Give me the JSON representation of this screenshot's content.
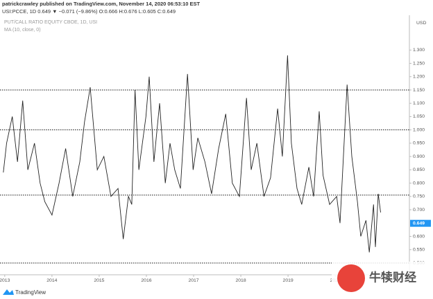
{
  "header": {
    "publisher": "patrickcrawley published on TradingView.com, November 14, 2020 06:53:10 EST",
    "quote": "USI:PCCE, 1D  0.649 ▼ −0.071 (−9.86%)  O:0.666 H:0.676 L:0.605 C:0.649"
  },
  "chart_data": {
    "type": "line",
    "title": "PUT/CALL RATIO EQUITY CBOE, 1D, USI",
    "subtitle": "MA (10, close, 0)",
    "currency": "USD",
    "x": [
      2012.97,
      2013.04,
      2013.16,
      2013.27,
      2013.38,
      2013.49,
      2013.63,
      2013.75,
      2013.85,
      2014.0,
      2014.15,
      2014.29,
      2014.44,
      2014.59,
      2014.69,
      2014.81,
      2014.96,
      2015.1,
      2015.25,
      2015.4,
      2015.51,
      2015.62,
      2015.69,
      2015.76,
      2015.84,
      2015.99,
      2016.06,
      2016.16,
      2016.28,
      2016.4,
      2016.5,
      2016.6,
      2016.72,
      2016.87,
      2016.99,
      2017.09,
      2017.24,
      2017.38,
      2017.53,
      2017.68,
      2017.82,
      2017.97,
      2018.12,
      2018.22,
      2018.34,
      2018.49,
      2018.63,
      2018.78,
      2018.88,
      2018.99,
      2019.07,
      2019.19,
      2019.29,
      2019.44,
      2019.54,
      2019.66,
      2019.74,
      2019.88,
      2020.03,
      2020.1,
      2020.25,
      2020.35,
      2020.47,
      2020.54,
      2020.65,
      2020.72,
      2020.81,
      2020.85,
      2020.91,
      2020.96
    ],
    "series": [
      {
        "name": "USI:PCCE",
        "color": "#222222",
        "values": [
          0.84,
          0.95,
          1.05,
          0.88,
          1.11,
          0.85,
          0.95,
          0.8,
          0.73,
          0.68,
          0.8,
          0.93,
          0.75,
          0.88,
          1.03,
          1.16,
          0.85,
          0.9,
          0.75,
          0.78,
          0.59,
          0.75,
          0.72,
          1.15,
          0.85,
          1.05,
          1.2,
          0.88,
          1.1,
          0.8,
          0.95,
          0.85,
          0.78,
          1.21,
          0.85,
          0.97,
          0.88,
          0.76,
          0.93,
          1.06,
          0.8,
          0.75,
          1.12,
          0.85,
          0.95,
          0.75,
          0.82,
          1.08,
          0.9,
          1.28,
          0.95,
          0.78,
          0.72,
          0.86,
          0.75,
          1.07,
          0.83,
          0.72,
          0.75,
          0.65,
          1.17,
          0.9,
          0.73,
          0.6,
          0.66,
          0.54,
          0.72,
          0.56,
          0.76,
          0.69
        ]
      }
    ],
    "last_price": 0.649,
    "levels": [
      1.15,
      1.0,
      0.755,
      0.5
    ],
    "xlim": [
      2012.9,
      2021.57
    ],
    "xticks": [
      2013,
      2014,
      2015,
      2016,
      2017,
      2018,
      2019,
      2020
    ],
    "ylim": [
      0.4557,
      1.4256
    ],
    "yticks": [
      {
        "value": 1.3,
        "label": "1.300"
      },
      {
        "value": 1.25,
        "label": "1.250"
      },
      {
        "value": 1.2,
        "label": "1.200"
      },
      {
        "value": 1.15,
        "label": "1.150"
      },
      {
        "value": 1.1,
        "label": "1.100"
      },
      {
        "value": 1.05,
        "label": "1.050"
      },
      {
        "value": 1.0,
        "label": "1.000"
      },
      {
        "value": 0.95,
        "label": "0.950"
      },
      {
        "value": 0.9,
        "label": "0.900"
      },
      {
        "value": 0.85,
        "label": "0.850"
      },
      {
        "value": 0.8,
        "label": "0.800"
      },
      {
        "value": 0.75,
        "label": "0.750"
      },
      {
        "value": 0.7,
        "label": "0.700"
      },
      {
        "value": 0.6,
        "label": "0.600"
      },
      {
        "value": 0.55,
        "label": "0.550"
      },
      {
        "value": 0.5,
        "label": "0.500"
      }
    ]
  },
  "footer": {
    "brand": "TradingView",
    "watermark": "牛犊财经"
  }
}
